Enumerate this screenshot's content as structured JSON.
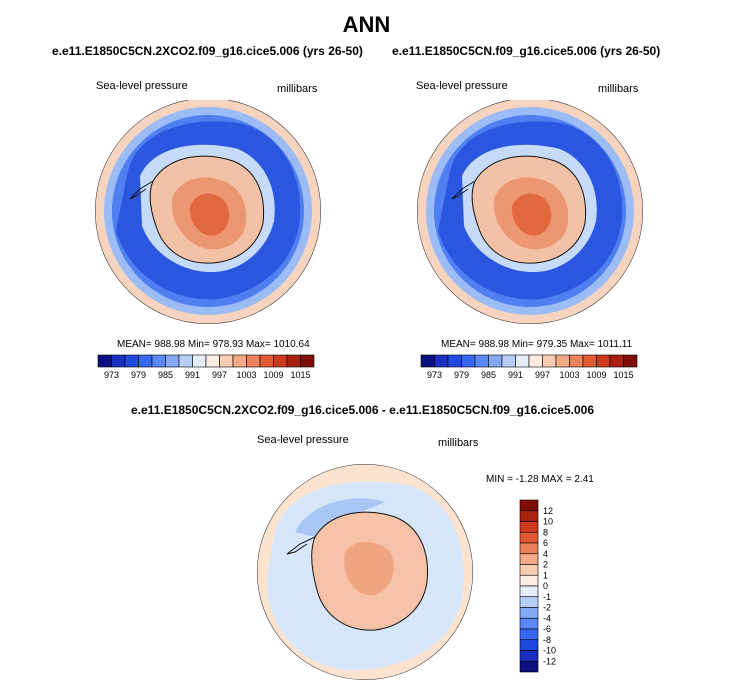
{
  "figure_title": "ANN",
  "colors": {
    "land_line": "#111111",
    "ring_outer": "#f6d4c0",
    "ocean_deep": "#2a56e0",
    "ocean_mid": "#4f7ff0",
    "ocean_light": "#9cbcf5",
    "ocean_pale": "#c6dbfa",
    "ice_pale": "#f3c1a6",
    "ice_mid": "#ec9672",
    "ice_high": "#e2683f",
    "diff_bg": "#d6e7fb",
    "diff_ring": "#fbe3d0",
    "diff_neg": "#a9c6f4",
    "diff_pos": "#f6c3a8",
    "diff_pos2": "#f0a482"
  },
  "panels": [
    {
      "case_title": "e.e11.E1850C5CN.2XCO2.f09_g16.cice5.006 (yrs 26-50)",
      "field_label": "Sea-level pressure",
      "units_label": "millibars",
      "stats_text": "MEAN= 988.98   Min= 978.93   Max= 1010.64"
    },
    {
      "case_title": "e.e11.E1850C5CN.f09_g16.cice5.006 (yrs 26-50)",
      "field_label": "Sea-level pressure",
      "units_label": "millibars",
      "stats_text": "MEAN= 988.98   Min= 979.35   Max= 1011.11"
    }
  ],
  "diff_panel": {
    "case_title": "e.e11.E1850C5CN.2XCO2.f09_g16.cice5.006 - e.e11.E1850C5CN.f09_g16.cice5.006",
    "field_label": "Sea-level pressure",
    "units_label": "millibars",
    "stats_text": "MIN =  -1.28 MAX =   2.41"
  },
  "chart_data": [
    {
      "type": "heatmap",
      "title": "e.e11.E1850C5CN.2XCO2.f09_g16.cice5.006 (yrs 26-50)",
      "field": "Sea-level pressure",
      "units": "millibars",
      "projection": "south polar stereographic",
      "mean": 988.98,
      "min": 978.93,
      "max": 1010.64,
      "colorbar": {
        "levels": [
          973,
          976,
          979,
          982,
          985,
          988,
          991,
          994,
          997,
          1000,
          1003,
          1006,
          1009,
          1012,
          1015
        ],
        "tick_labels": [
          "973",
          "979",
          "985",
          "991",
          "997",
          "1003",
          "1009",
          "1015"
        ],
        "colors": [
          "#0b0f80",
          "#1a2fbf",
          "#1f49e0",
          "#3868f0",
          "#5a88f5",
          "#86a9f7",
          "#b7cefa",
          "#e6eefc",
          "#fdece2",
          "#f9cdb5",
          "#f4a987",
          "#ec825b",
          "#e25a34",
          "#cf3a1c",
          "#a8200e",
          "#7e0f05"
        ]
      }
    },
    {
      "type": "heatmap",
      "title": "e.e11.E1850C5CN.f09_g16.cice5.006 (yrs 26-50)",
      "field": "Sea-level pressure",
      "units": "millibars",
      "projection": "south polar stereographic",
      "mean": 988.98,
      "min": 979.35,
      "max": 1011.11,
      "colorbar": {
        "levels": [
          973,
          976,
          979,
          982,
          985,
          988,
          991,
          994,
          997,
          1000,
          1003,
          1006,
          1009,
          1012,
          1015
        ],
        "tick_labels": [
          "973",
          "979",
          "985",
          "991",
          "997",
          "1003",
          "1009",
          "1015"
        ],
        "colors": [
          "#0b0f80",
          "#1a2fbf",
          "#1f49e0",
          "#3868f0",
          "#5a88f5",
          "#86a9f7",
          "#b7cefa",
          "#e6eefc",
          "#fdece2",
          "#f9cdb5",
          "#f4a987",
          "#ec825b",
          "#e25a34",
          "#cf3a1c",
          "#a8200e",
          "#7e0f05"
        ]
      }
    },
    {
      "type": "heatmap",
      "title": "e.e11.E1850C5CN.2XCO2.f09_g16.cice5.006 - e.e11.E1850C5CN.f09_g16.cice5.006",
      "field": "Sea-level pressure",
      "units": "millibars",
      "projection": "south polar stereographic",
      "min": -1.28,
      "max": 2.41,
      "colorbar": {
        "levels": [
          -12,
          -10,
          -8,
          -6,
          -4,
          -2,
          -1,
          0,
          1,
          2,
          4,
          6,
          8,
          10,
          12
        ],
        "tick_labels": [
          "12",
          "10",
          "8",
          "6",
          "4",
          "2",
          "1",
          "0",
          "-1",
          "-2",
          "-4",
          "-6",
          "-8",
          "-10",
          "-12"
        ],
        "colors": [
          "#0b0f80",
          "#1a2fbf",
          "#1f49e0",
          "#3868f0",
          "#5a88f5",
          "#86a9f7",
          "#b7cefa",
          "#e6eefc",
          "#fdece2",
          "#f9cdb5",
          "#f4a987",
          "#ec825b",
          "#e25a34",
          "#cf3a1c",
          "#a8200e",
          "#7e0f05"
        ]
      }
    }
  ]
}
